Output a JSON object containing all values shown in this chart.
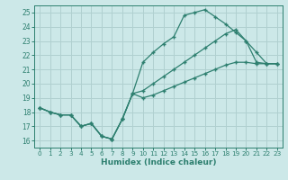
{
  "xlabel": "Humidex (Indice chaleur)",
  "xlim": [
    -0.5,
    23.5
  ],
  "ylim": [
    15.5,
    25.5
  ],
  "xticks": [
    0,
    1,
    2,
    3,
    4,
    5,
    6,
    7,
    8,
    9,
    10,
    11,
    12,
    13,
    14,
    15,
    16,
    17,
    18,
    19,
    20,
    21,
    22,
    23
  ],
  "yticks": [
    16,
    17,
    18,
    19,
    20,
    21,
    22,
    23,
    24,
    25
  ],
  "bg_color": "#cce8e8",
  "grid_color": "#b0d0d0",
  "line_color": "#2d7f6f",
  "line1_x": [
    0,
    1,
    2,
    3,
    4,
    5,
    6,
    7,
    8,
    9,
    10,
    11,
    12,
    13,
    14,
    15,
    16,
    17,
    18,
    19,
    20,
    21,
    22,
    23
  ],
  "line1_y": [
    18.3,
    18.0,
    17.8,
    17.8,
    17.0,
    17.2,
    16.3,
    16.1,
    17.5,
    19.3,
    21.5,
    22.2,
    22.8,
    23.3,
    24.8,
    25.0,
    25.2,
    24.7,
    24.2,
    23.6,
    23.0,
    22.2,
    21.4,
    21.4
  ],
  "line2_x": [
    0,
    1,
    2,
    3,
    4,
    5,
    6,
    7,
    8,
    9,
    10,
    11,
    12,
    13,
    14,
    15,
    16,
    17,
    18,
    19,
    20,
    21,
    22,
    23
  ],
  "line2_y": [
    18.3,
    18.0,
    17.8,
    17.8,
    17.0,
    17.2,
    16.3,
    16.1,
    17.5,
    19.3,
    19.5,
    20.0,
    20.5,
    21.0,
    21.5,
    22.0,
    22.5,
    23.0,
    23.5,
    23.8,
    23.0,
    21.5,
    21.4,
    21.4
  ],
  "line3_x": [
    0,
    1,
    2,
    3,
    4,
    5,
    6,
    7,
    8,
    9,
    10,
    11,
    12,
    13,
    14,
    15,
    16,
    17,
    18,
    19,
    20,
    21,
    22,
    23
  ],
  "line3_y": [
    18.3,
    18.0,
    17.8,
    17.8,
    17.0,
    17.2,
    16.3,
    16.1,
    17.5,
    19.3,
    19.0,
    19.2,
    19.5,
    19.8,
    20.1,
    20.4,
    20.7,
    21.0,
    21.3,
    21.5,
    21.5,
    21.4,
    21.4,
    21.4
  ]
}
